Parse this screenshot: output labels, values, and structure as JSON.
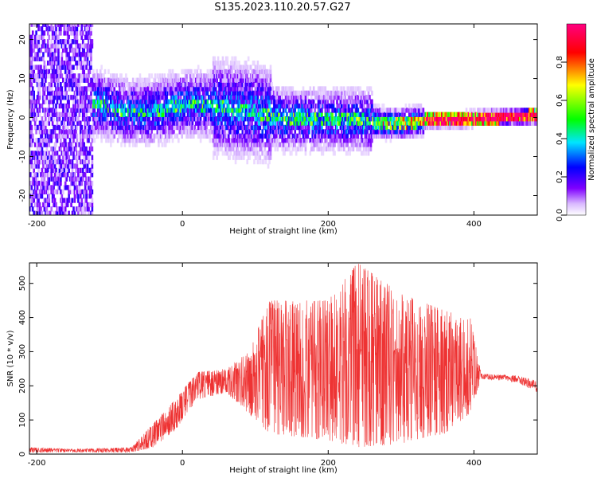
{
  "figure": {
    "title": "S135.2023.110.20.57.G27"
  },
  "chart_data": [
    {
      "type": "heatmap",
      "title": "S135.2023.110.20.57.G27",
      "xlabel": "Height of straight line (km)",
      "ylabel": "Frequency (Hz)",
      "xlim": [
        -210,
        487
      ],
      "ylim": [
        -25,
        24
      ],
      "x_ticks": [
        -200,
        0,
        200,
        400
      ],
      "y_ticks": [
        -20,
        -10,
        0,
        10,
        20
      ],
      "colorbar": {
        "label": "Normalized spectral amplitude",
        "range": [
          0,
          1
        ],
        "ticks": [
          0.0,
          0.2,
          0.4,
          0.6,
          0.8
        ],
        "colormap": "rainbow",
        "colors": [
          "#ffffff",
          "#7f00ff",
          "#0000ff",
          "#00ffff",
          "#00ff00",
          "#ffff00",
          "#ff0000",
          "#ff0080"
        ]
      },
      "band_center": [
        [
          -110,
          3
        ],
        [
          -100,
          2
        ],
        [
          -80,
          1
        ],
        [
          -60,
          1
        ],
        [
          -40,
          1
        ],
        [
          -20,
          2
        ],
        [
          0,
          3
        ],
        [
          20,
          3
        ],
        [
          60,
          2
        ],
        [
          100,
          1
        ],
        [
          140,
          -1
        ],
        [
          200,
          -1
        ],
        [
          240,
          -1
        ],
        [
          280,
          -2
        ],
        [
          300,
          -2
        ],
        [
          340,
          -1
        ],
        [
          380,
          -1
        ],
        [
          420,
          -0.5
        ],
        [
          487,
          0
        ]
      ],
      "grid": false
    },
    {
      "type": "line",
      "xlabel": "Height of straight line (km)",
      "ylabel": "SNR (10 * v/v)",
      "xlim": [
        -210,
        487
      ],
      "ylim": [
        0,
        560
      ],
      "x_ticks": [
        -200,
        0,
        200,
        400
      ],
      "y_ticks": [
        0,
        100,
        200,
        300,
        400,
        500
      ],
      "line_color": "#ee3333",
      "envelope": [
        {
          "x": -210,
          "low": 5,
          "high": 20
        },
        {
          "x": -150,
          "low": 5,
          "high": 15
        },
        {
          "x": -70,
          "low": 5,
          "high": 20
        },
        {
          "x": -40,
          "low": 20,
          "high": 90
        },
        {
          "x": -10,
          "low": 70,
          "high": 160
        },
        {
          "x": 20,
          "low": 160,
          "high": 240
        },
        {
          "x": 60,
          "low": 180,
          "high": 250
        },
        {
          "x": 90,
          "low": 120,
          "high": 300
        },
        {
          "x": 120,
          "low": 60,
          "high": 450
        },
        {
          "x": 200,
          "low": 40,
          "high": 450
        },
        {
          "x": 240,
          "low": 20,
          "high": 560
        },
        {
          "x": 300,
          "low": 30,
          "high": 470
        },
        {
          "x": 360,
          "low": 60,
          "high": 420
        },
        {
          "x": 395,
          "low": 120,
          "high": 400
        },
        {
          "x": 410,
          "low": 220,
          "high": 235
        },
        {
          "x": 460,
          "low": 210,
          "high": 230
        },
        {
          "x": 487,
          "low": 180,
          "high": 215
        }
      ],
      "grid": false
    }
  ]
}
